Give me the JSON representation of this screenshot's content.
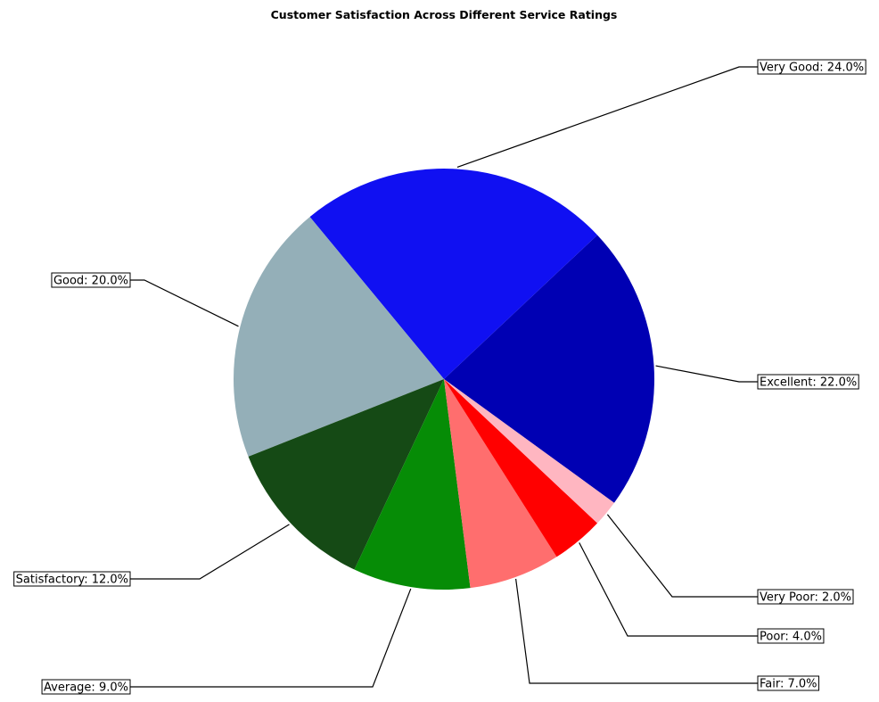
{
  "chart_data": {
    "type": "pie",
    "title": "Customer Satisfaction Across Different Service Ratings",
    "slices": [
      {
        "label": "Excellent",
        "value": 22.0,
        "text": "Excellent: 22.0%",
        "color": "#0000b3"
      },
      {
        "label": "Very Good",
        "value": 24.0,
        "text": "Very Good: 24.0%",
        "color": "#1010f2"
      },
      {
        "label": "Good",
        "value": 20.0,
        "text": "Good: 20.0%",
        "color": "#94afb8"
      },
      {
        "label": "Satisfactory",
        "value": 12.0,
        "text": "Satisfactory: 12.0%",
        "color": "#154a15"
      },
      {
        "label": "Average",
        "value": 9.0,
        "text": "Average: 9.0%",
        "color": "#068c06"
      },
      {
        "label": "Fair",
        "value": 7.0,
        "text": "Fair: 7.0%",
        "color": "#ff6e6e"
      },
      {
        "label": "Poor",
        "value": 4.0,
        "text": "Poor: 4.0%",
        "color": "#ff0000"
      },
      {
        "label": "Very Poor",
        "value": 2.0,
        "text": "Very Poor: 2.0%",
        "color": "#ffb6c1"
      }
    ],
    "start_angle_deg": -36,
    "direction": "counterclockwise",
    "legend": "none"
  }
}
